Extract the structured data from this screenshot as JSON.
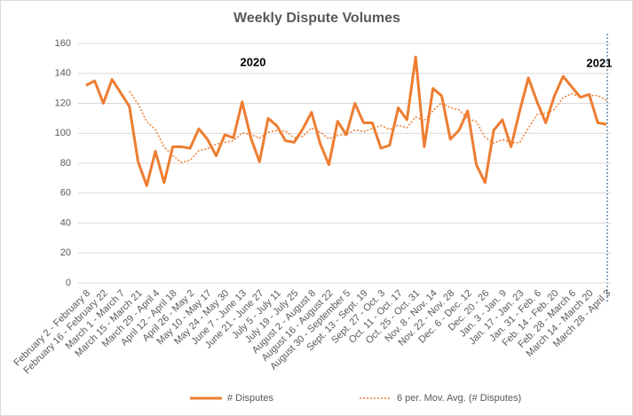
{
  "chart_data": {
    "type": "line",
    "title": "Weekly Dispute Volumes",
    "annotations": [
      "2020",
      "2021"
    ],
    "categories": [
      "February 2 - February 8",
      null,
      "February 16 - February 22",
      null,
      "March 1 - March 7",
      null,
      "March 15 - March 21",
      null,
      "March 29 - April 4",
      null,
      "April 12 - April 18",
      null,
      "April 26 - May 2",
      null,
      "May 10 - May 17",
      null,
      "May 24 - May 30",
      null,
      "June 7 - June 13",
      null,
      "June 21 - June 27",
      null,
      "July 5 - July 11",
      null,
      "July 19 - July 25",
      null,
      "August 2 - August 8",
      null,
      "August 16 - August 22",
      null,
      "August 30 - September 5",
      null,
      "Sept. 13 - Sept. 19",
      null,
      "Sept. 27 - Oct. 3",
      null,
      "Oct. 11 - Oct. 17",
      null,
      "Oct. 25 - Oct. 31",
      null,
      "Nov. 8 - Nov. 14",
      null,
      "Nov. 22 - Nov. 28",
      null,
      "Dec. 6 - Dec. 12",
      null,
      "Dec. 20 - 26",
      null,
      "Jan. 3 - Jan. 9",
      null,
      "Jan. 17 - Jan. 23",
      null,
      "Jan. 31 - Feb. 6",
      null,
      "Feb. 14 - Feb. 20",
      null,
      "Feb. 28 - March 6",
      null,
      "March 14 - March 20",
      null,
      "March 28 - April 3"
    ],
    "series": [
      {
        "name": "# Disputes",
        "color": "#ed7d31",
        "style": "solid",
        "values": [
          132,
          135,
          120,
          136,
          127,
          118,
          81,
          65,
          88,
          67,
          91,
          91,
          90,
          103,
          96,
          85,
          99,
          97,
          121,
          97,
          81,
          110,
          105,
          95,
          94,
          103,
          114,
          93,
          79,
          108,
          99,
          120,
          107,
          107,
          90,
          92,
          117,
          109,
          151,
          91,
          130,
          125,
          96,
          102,
          115,
          79,
          67,
          102,
          109,
          91,
          115,
          137,
          121,
          107,
          125,
          138,
          131,
          124,
          126,
          107,
          106
        ]
      },
      {
        "name": "6 per. Mov. Avg. (# Disputes)",
        "color": "#ed7d31",
        "style": "dotted",
        "values": [
          null,
          null,
          null,
          null,
          null,
          128.0,
          119.5,
          107.8,
          102.5,
          91.0,
          85.0,
          80.5,
          82.0,
          88.3,
          89.7,
          92.7,
          94.0,
          95.0,
          100.2,
          99.2,
          96.7,
          100.8,
          101.8,
          101.5,
          97.0,
          98.0,
          103.5,
          100.7,
          96.3,
          98.5,
          99.3,
          102.2,
          101.0,
          103.3,
          105.2,
          102.5,
          105.5,
          103.7,
          111.0,
          108.3,
          115.0,
          120.5,
          117.0,
          115.8,
          109.8,
          107.8,
          97.3,
          93.5,
          95.7,
          93.8,
          93.8,
          103.5,
          112.5,
          113.3,
          116.0,
          123.8,
          126.5,
          124.3,
          125.2,
          125.2,
          122.0
        ]
      }
    ],
    "ylim": [
      0,
      160
    ],
    "yticks": [
      0,
      20,
      40,
      60,
      80,
      100,
      120,
      140,
      160
    ],
    "grid": true,
    "legend": "bottom"
  }
}
